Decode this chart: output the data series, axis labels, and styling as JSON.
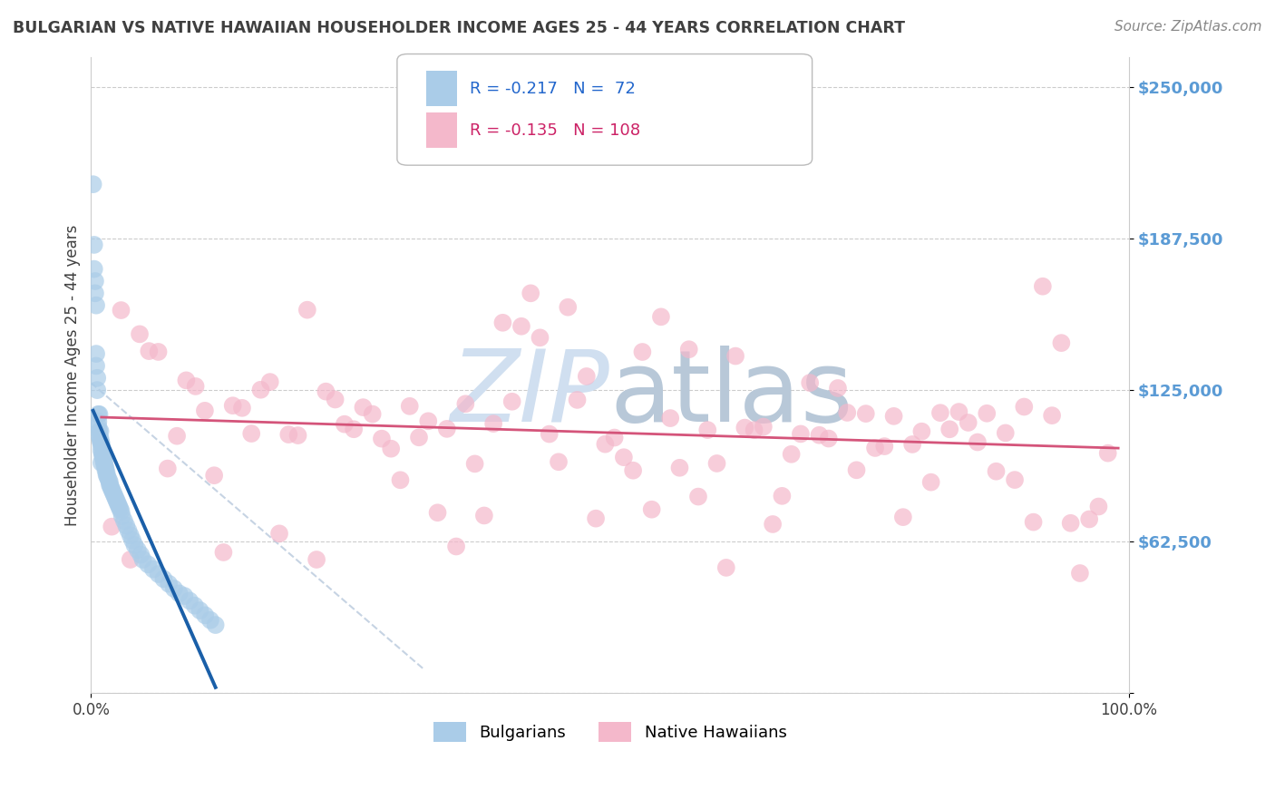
{
  "title": "BULGARIAN VS NATIVE HAWAIIAN HOUSEHOLDER INCOME AGES 25 - 44 YEARS CORRELATION CHART",
  "source": "Source: ZipAtlas.com",
  "ylabel": "Householder Income Ages 25 - 44 years",
  "r_bulgarian": -0.217,
  "n_bulgarian": 72,
  "r_native": -0.135,
  "n_native": 108,
  "blue_color": "#aacce8",
  "pink_color": "#f4b8cb",
  "blue_line_color": "#1a5fa8",
  "pink_line_color": "#d4547a",
  "diagonal_line_color": "#c0cfe0",
  "background_color": "#ffffff",
  "grid_color": "#cccccc",
  "title_color": "#404040",
  "ytick_color": "#5b9bd5",
  "watermark_color": "#d0dff0",
  "xlim": [
    0.0,
    1.0
  ],
  "ylim": [
    0,
    262500
  ],
  "ytick_vals": [
    0,
    62500,
    125000,
    187500,
    250000
  ],
  "ytick_labels": [
    "",
    "$62,500",
    "$125,000",
    "$187,500",
    "$250,000"
  ]
}
